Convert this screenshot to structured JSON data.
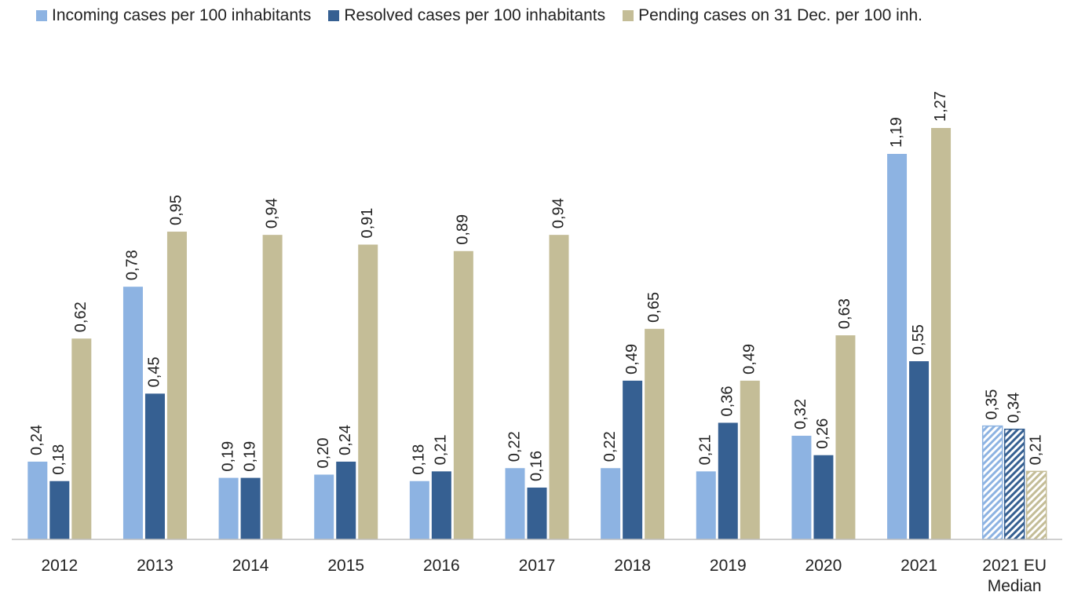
{
  "chart_data": {
    "type": "bar",
    "categories": [
      "2012",
      "2013",
      "2014",
      "2015",
      "2016",
      "2017",
      "2018",
      "2019",
      "2020",
      "2021",
      "2021 EU Median"
    ],
    "hatched": [
      false,
      false,
      false,
      false,
      false,
      false,
      false,
      false,
      false,
      false,
      true
    ],
    "series": [
      {
        "name": "Incoming cases per 100 inhabitants",
        "color": "#8db3e2",
        "values": [
          0.24,
          0.78,
          0.19,
          0.2,
          0.18,
          0.22,
          0.22,
          0.21,
          0.32,
          1.19,
          0.35
        ],
        "value_labels": [
          "0,24",
          "0,78",
          "0,19",
          "0,20",
          "0,18",
          "0,22",
          "0,22",
          "0,21",
          "0,32",
          "1,19",
          "0,35"
        ]
      },
      {
        "name": "Resolved cases per 100 inhabitants",
        "color": "#366092",
        "values": [
          0.18,
          0.45,
          0.19,
          0.24,
          0.21,
          0.16,
          0.49,
          0.36,
          0.26,
          0.55,
          0.34
        ],
        "value_labels": [
          "0,18",
          "0,45",
          "0,19",
          "0,24",
          "0,21",
          "0,16",
          "0,49",
          "0,36",
          "0,26",
          "0,55",
          "0,34"
        ]
      },
      {
        "name": "Pending cases on 31 Dec. per 100 inh.",
        "color": "#c4bd97",
        "values": [
          0.62,
          0.95,
          0.94,
          0.91,
          0.89,
          0.94,
          0.65,
          0.49,
          0.63,
          1.27,
          0.21
        ],
        "value_labels": [
          "0,62",
          "0,95",
          "0,94",
          "0,91",
          "0,89",
          "0,94",
          "0,65",
          "0,49",
          "0,63",
          "1,27",
          "0,21"
        ]
      }
    ],
    "legend": "top"
  }
}
